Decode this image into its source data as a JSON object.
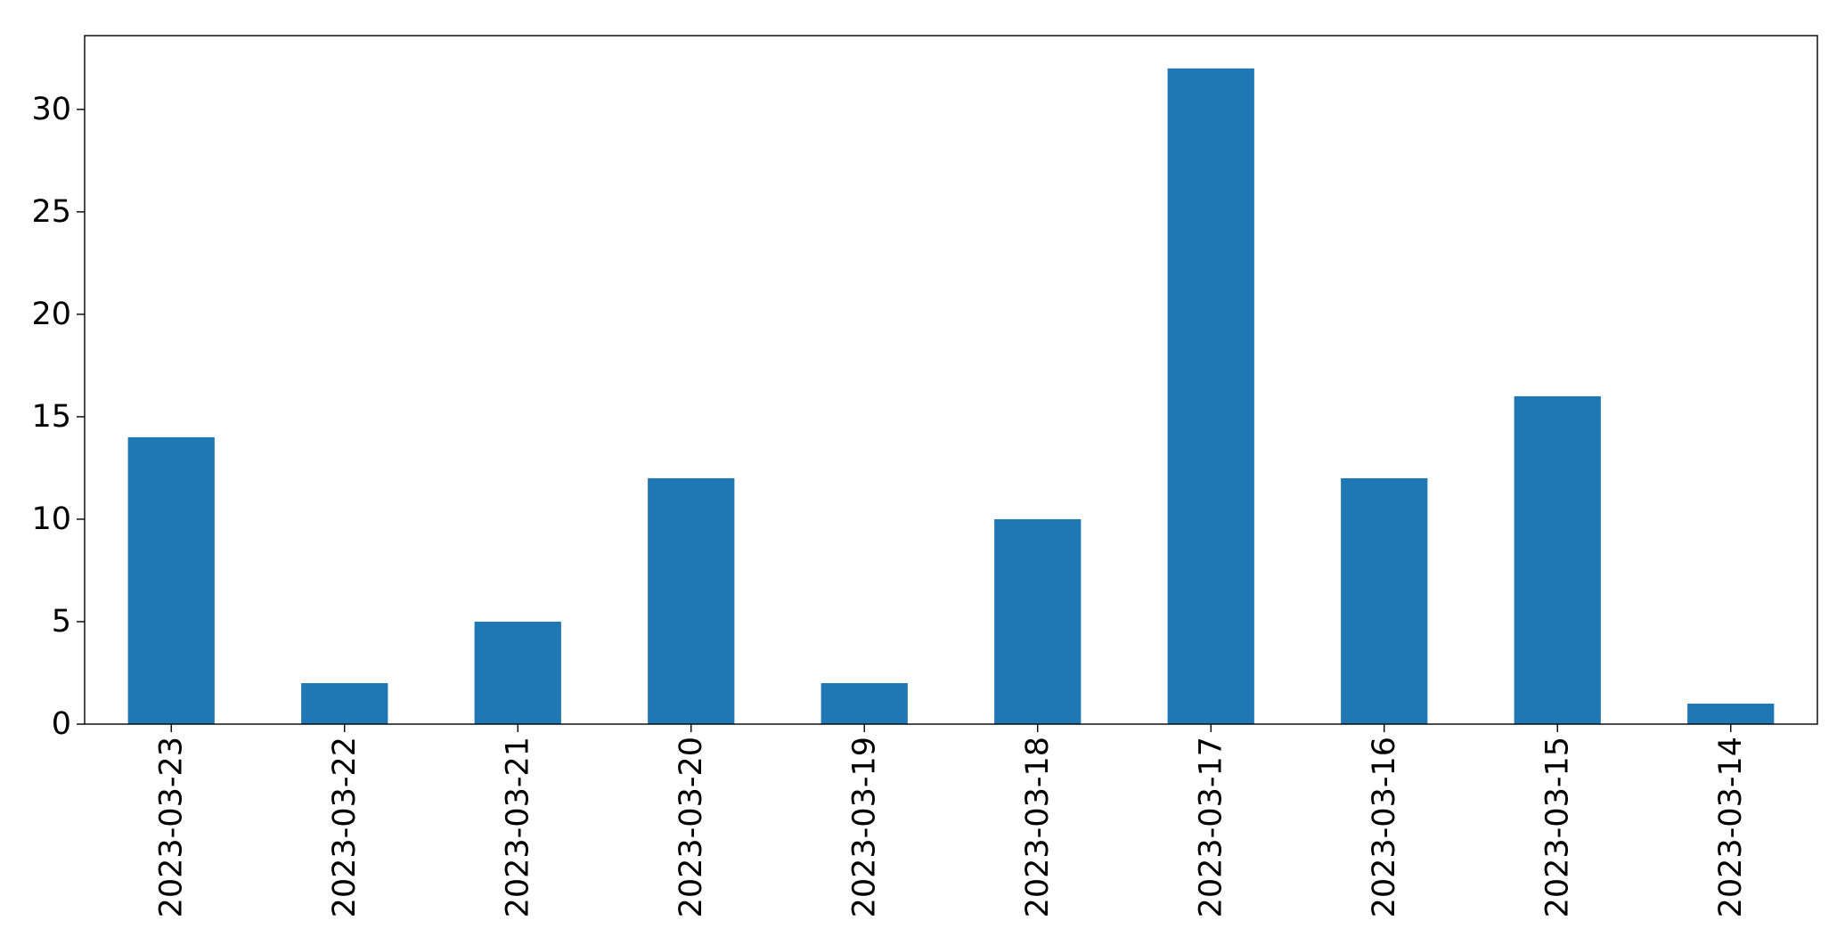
{
  "chart_data": {
    "type": "bar",
    "categories": [
      "2023-03-23",
      "2023-03-22",
      "2023-03-21",
      "2023-03-20",
      "2023-03-19",
      "2023-03-18",
      "2023-03-17",
      "2023-03-16",
      "2023-03-15",
      "2023-03-14"
    ],
    "values": [
      14,
      2,
      5,
      12,
      2,
      10,
      32,
      12,
      16,
      1
    ],
    "title": "",
    "xlabel": "",
    "ylabel": "",
    "ylim": [
      0,
      33.6
    ],
    "yticks": [
      0,
      5,
      10,
      15,
      20,
      25,
      30
    ],
    "grid": false,
    "legend": "none",
    "bar_color": "#1f77b4"
  }
}
